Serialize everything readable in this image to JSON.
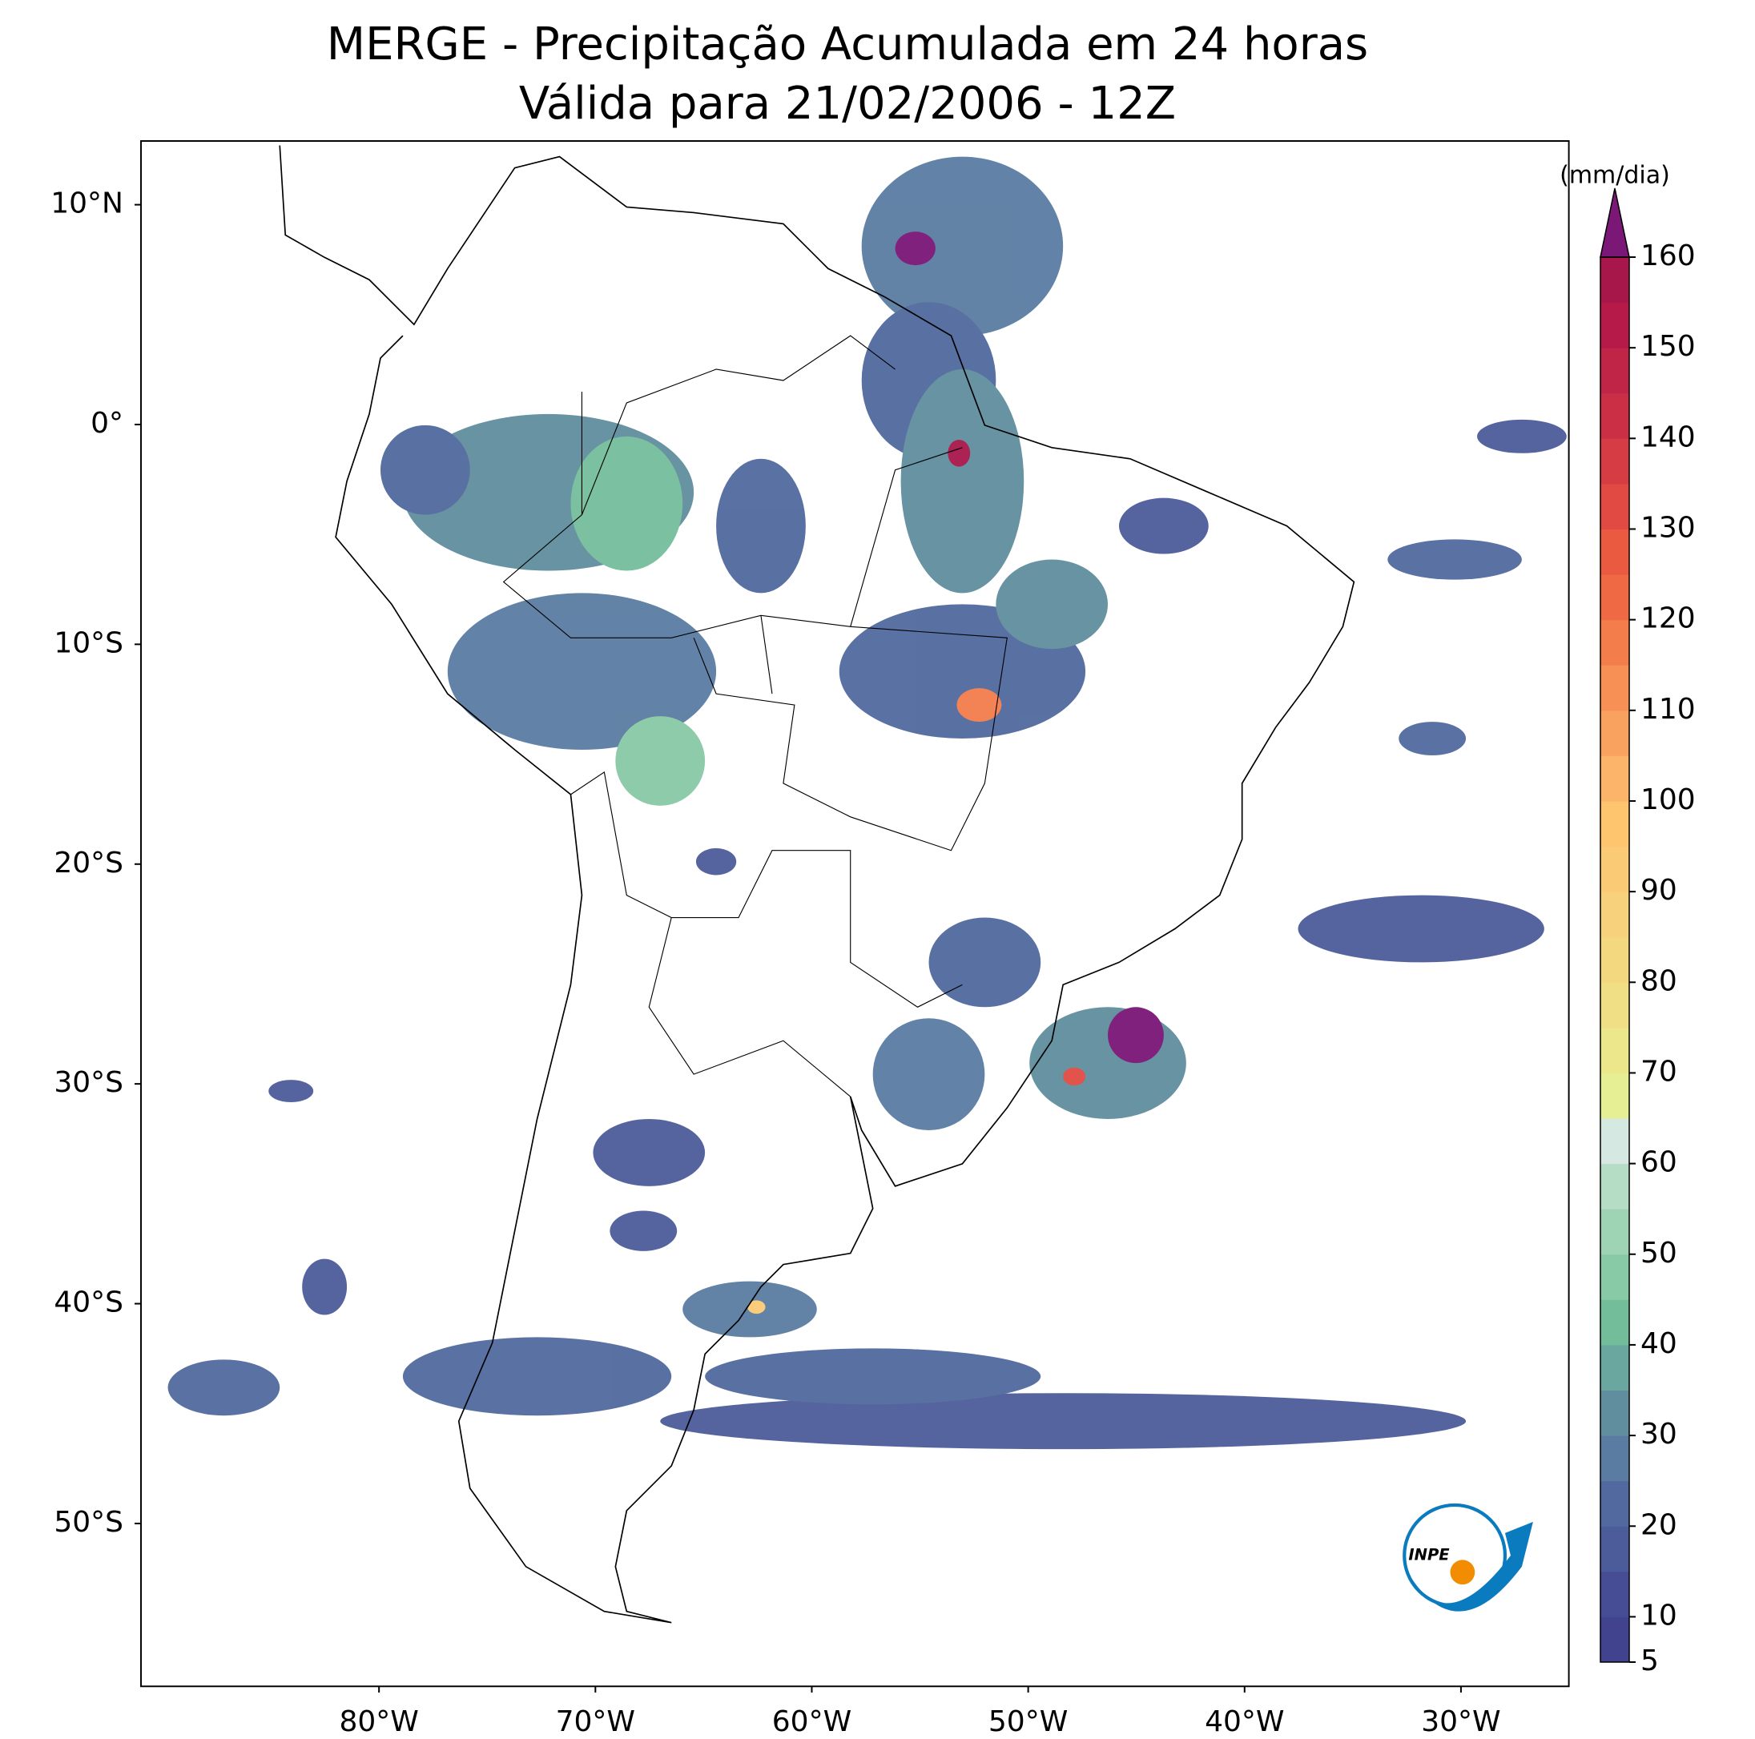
{
  "chart_data": {
    "type": "map",
    "title": "MERGE - Precipitação Acumulada em 24 horas",
    "subtitle": "Válida para 21/02/2006 - 12Z",
    "xlim": [
      -91,
      -25
    ],
    "ylim": [
      -57.4,
      12.9
    ],
    "xticks": [
      {
        "value": -80,
        "label": "80°W"
      },
      {
        "value": -70,
        "label": "70°W"
      },
      {
        "value": -60,
        "label": "60°W"
      },
      {
        "value": -50,
        "label": "50°W"
      },
      {
        "value": -40,
        "label": "40°W"
      },
      {
        "value": -30,
        "label": "30°W"
      }
    ],
    "yticks": [
      {
        "value": 10,
        "label": "10°N"
      },
      {
        "value": 0,
        "label": "0°"
      },
      {
        "value": -10,
        "label": "10°S"
      },
      {
        "value": -20,
        "label": "20°S"
      },
      {
        "value": -30,
        "label": "30°S"
      },
      {
        "value": -40,
        "label": "40°S"
      },
      {
        "value": -50,
        "label": "50°S"
      }
    ],
    "colorbar": {
      "label": "(mm/dia)",
      "range": [
        5,
        160
      ],
      "ticks": [
        5,
        10,
        20,
        30,
        40,
        50,
        60,
        70,
        80,
        90,
        100,
        110,
        120,
        130,
        140,
        150,
        160
      ],
      "colors": [
        "#41438e",
        "#474d94",
        "#4c5c9a",
        "#51699e",
        "#5a7ca2",
        "#608e9f",
        "#6aa79f",
        "#74bd9b",
        "#88c9a6",
        "#9ed3b4",
        "#b5ddc6",
        "#d5e8e2",
        "#e6ef94",
        "#ede78c",
        "#f1df85",
        "#f4d87f",
        "#f8d17c",
        "#fbca75",
        "#fec46e",
        "#fcb46a",
        "#f9a25f",
        "#f69055",
        "#f37d4b",
        "#ef6a44",
        "#ea5a41",
        "#e04a42",
        "#d63c43",
        "#cb2f45",
        "#c02447",
        "#b51a48",
        "#a8174a"
      ],
      "extend_color": "#7a1777"
    },
    "logo": "INPE"
  }
}
